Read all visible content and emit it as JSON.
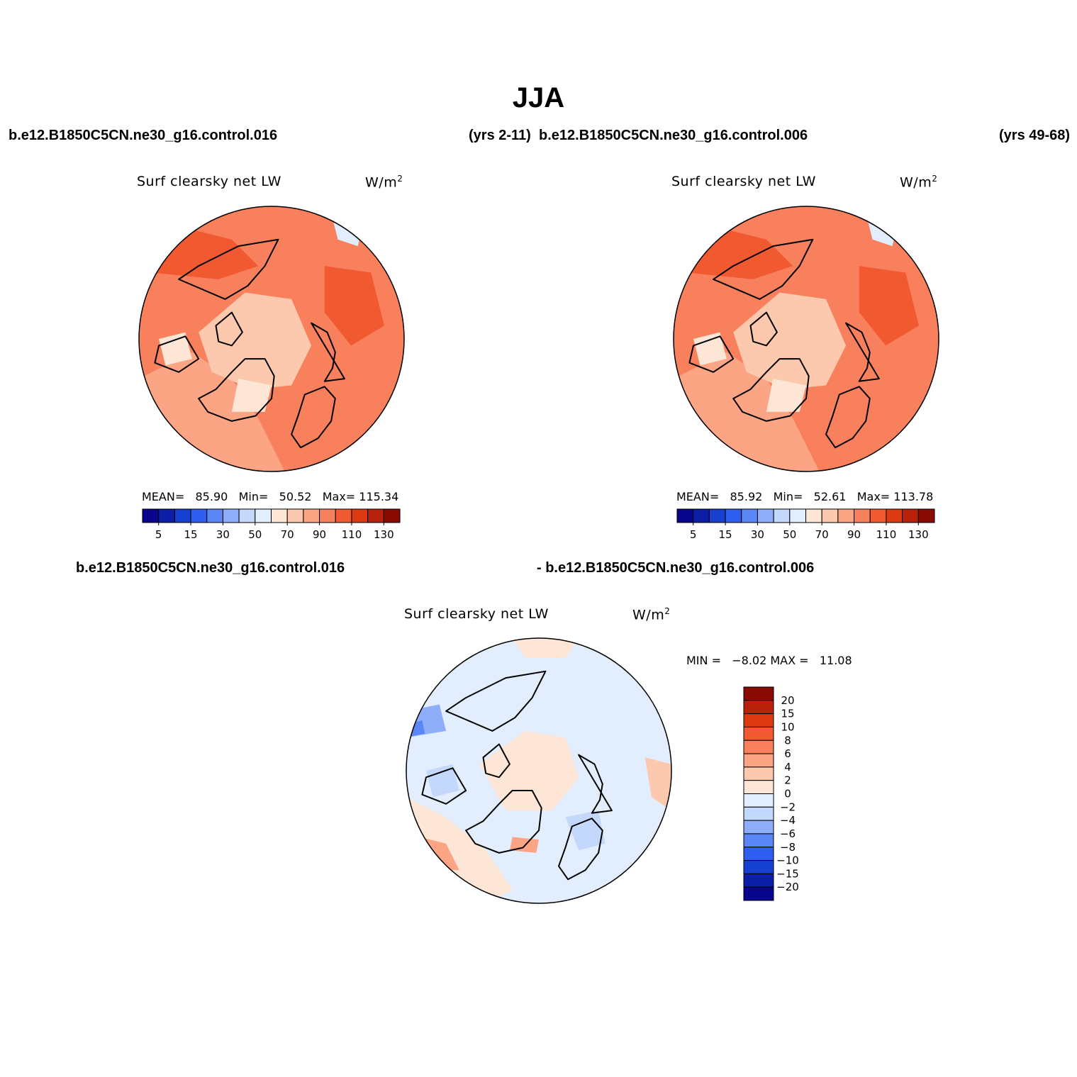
{
  "title": "JJA",
  "header": {
    "left_case": "b.e12.B1850C5CN.ne30_g16.control.016",
    "left_years": "(yrs 2-11)",
    "right_case": "b.e12.B1850C5CN.ne30_g16.control.006",
    "right_years": "(yrs 49-68)"
  },
  "diff_header": {
    "left": "b.e12.B1850C5CN.ne30_g16.control.016",
    "right": "- b.e12.B1850C5CN.ne30_g16.control.006"
  },
  "panels": [
    {
      "id": "case1",
      "variable": "Surf clearsky net LW",
      "units": "W/m",
      "units_sup": "2",
      "mean_label": "MEAN=",
      "mean": "85.90",
      "min_label": "Min=",
      "min": "50.52",
      "max_label": "Max=",
      "max": "115.34"
    },
    {
      "id": "case2",
      "variable": "Surf clearsky net LW",
      "units": "W/m",
      "units_sup": "2",
      "mean_label": "MEAN=",
      "mean": "85.92",
      "min_label": "Min=",
      "min": "52.61",
      "max_label": "Max=",
      "max": "113.78"
    }
  ],
  "diff_panel": {
    "variable": "Surf clearsky net LW",
    "units": "W/m",
    "units_sup": "2",
    "min_label": "MIN =",
    "min": "−8.02",
    "max_label": "MAX =",
    "max": "11.08"
  },
  "colorbar_main": {
    "colors": [
      "#08048c",
      "#0a1ea6",
      "#1640d2",
      "#2f5ff0",
      "#5a86f6",
      "#8eaefa",
      "#c4d8fb",
      "#e2eefd",
      "#fde6d6",
      "#fcc8ae",
      "#fba585",
      "#f8805c",
      "#f15a30",
      "#de3a12",
      "#b8220b",
      "#8a0a04"
    ],
    "labels": [
      "5",
      "15",
      "30",
      "50",
      "70",
      "90",
      "110",
      "130"
    ]
  },
  "colorbar_diff": {
    "colors_top_to_bottom": [
      "#8a0a04",
      "#b8220b",
      "#de3a12",
      "#f15a30",
      "#f8805c",
      "#fba585",
      "#fcc8ae",
      "#fde6d6",
      "#e2eefd",
      "#c4d8fb",
      "#8eaefa",
      "#5a86f6",
      "#2f5ff0",
      "#1640d2",
      "#0a1ea6",
      "#08048c"
    ],
    "labels": [
      "20",
      "15",
      "10",
      "8",
      "6",
      "4",
      "2",
      "0",
      "−2",
      "−4",
      "−6",
      "−8",
      "−10",
      "−15",
      "−20"
    ]
  },
  "map_colors": {
    "coast": "#000000",
    "c_low": "#fde6d6",
    "c_mid": "#fcc8ae",
    "c_high": "#fba585",
    "c_higher": "#f8805c",
    "c_peak": "#f15a30",
    "c_cold": "#e2eefd",
    "d_pos1": "#fde6d6",
    "d_pos2": "#fcc8ae",
    "d_pos3": "#fba585",
    "d_neg1": "#e2eefd",
    "d_neg2": "#c4d8fb",
    "d_neg3": "#8eaefa",
    "d_neg4": "#5a86f6"
  }
}
